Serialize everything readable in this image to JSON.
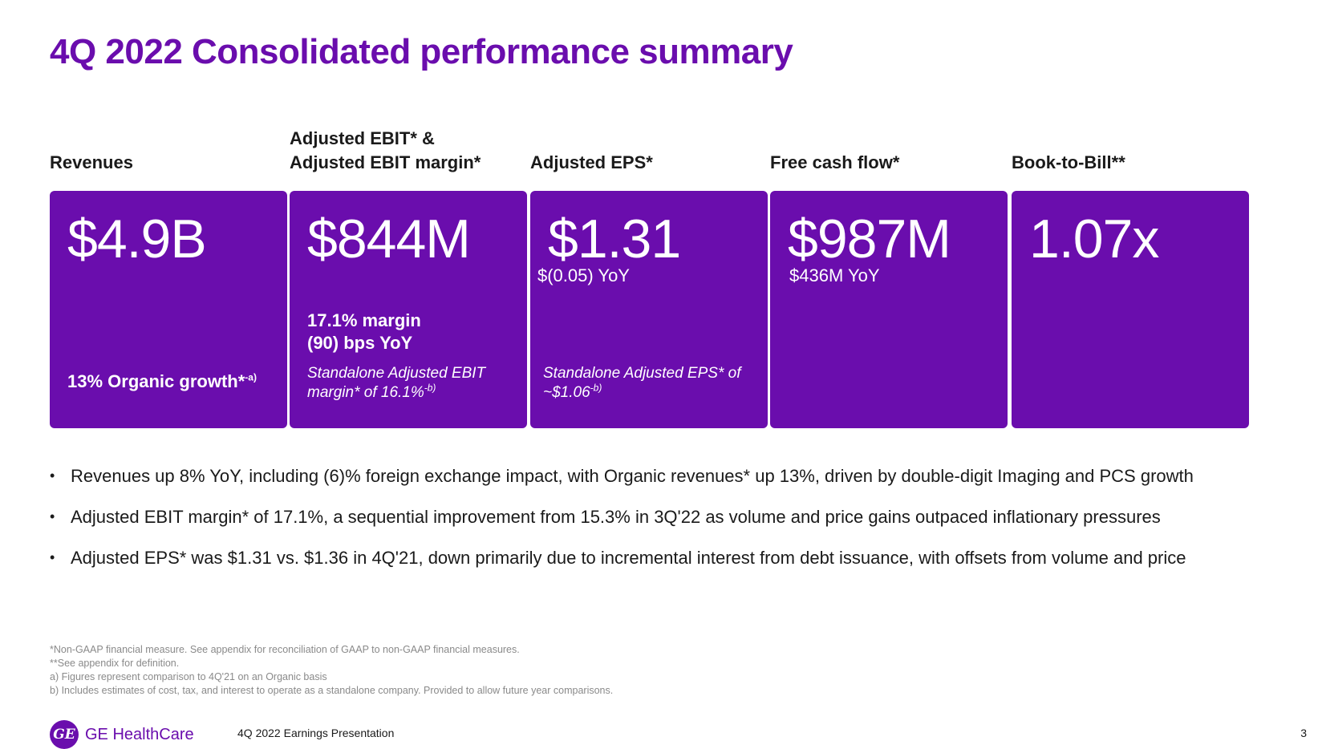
{
  "title": "4Q 2022 Consolidated performance summary",
  "kpis": {
    "revenues": {
      "heading": "Revenues",
      "value": "$4.9B",
      "detail": "13% Organic growth*",
      "detail_sup": "-a)"
    },
    "ebit": {
      "heading": "Adjusted EBIT* &\nAdjusted EBIT margin*",
      "value": "$844M",
      "detail_line1": "17.1% margin",
      "detail_line2": "(90) bps YoY",
      "note": "Standalone Adjusted EBIT\nmargin* of 16.1%",
      "note_sup": "-b)"
    },
    "eps": {
      "heading": "Adjusted EPS*",
      "value": "$1.31",
      "yoy": "$(0.05) YoY",
      "note": "Standalone Adjusted EPS* of\n~$1.06",
      "note_sup": "-b)"
    },
    "fcf": {
      "heading": "Free cash flow*",
      "value": "$987M",
      "yoy": "$436M YoY"
    },
    "btb": {
      "heading": "Book-to-Bill**",
      "value": "1.07x"
    }
  },
  "bullets": [
    "Revenues up 8% YoY, including (6)% foreign exchange impact, with Organic revenues* up 13%, driven by double-digit Imaging and PCS growth",
    "Adjusted EBIT margin* of 17.1%,  a sequential improvement from 15.3% in 3Q'22 as volume and price gains outpaced inflationary pressures",
    "Adjusted EPS* was $1.31 vs. $1.36  in 4Q'21, down primarily due to incremental interest from debt issuance, with offsets from volume and price"
  ],
  "footnotes": [
    "*Non-GAAP financial measure. See appendix for reconciliation of GAAP to non-GAAP financial measures.",
    "**See appendix for definition.",
    "a) Figures represent comparison to 4Q'21 on an Organic basis",
    "b) Includes estimates of cost, tax, and interest to operate as a standalone company.  Provided to allow future year comparisons."
  ],
  "footer": {
    "logo_mark": "GE",
    "logo_text": "GE HealthCare",
    "presentation": "4Q 2022 Earnings Presentation",
    "page_number": "3"
  },
  "colors": {
    "brand_purple": "#6a0dad",
    "text": "#1a1a1a",
    "footnote_gray": "#8a8a8a"
  }
}
